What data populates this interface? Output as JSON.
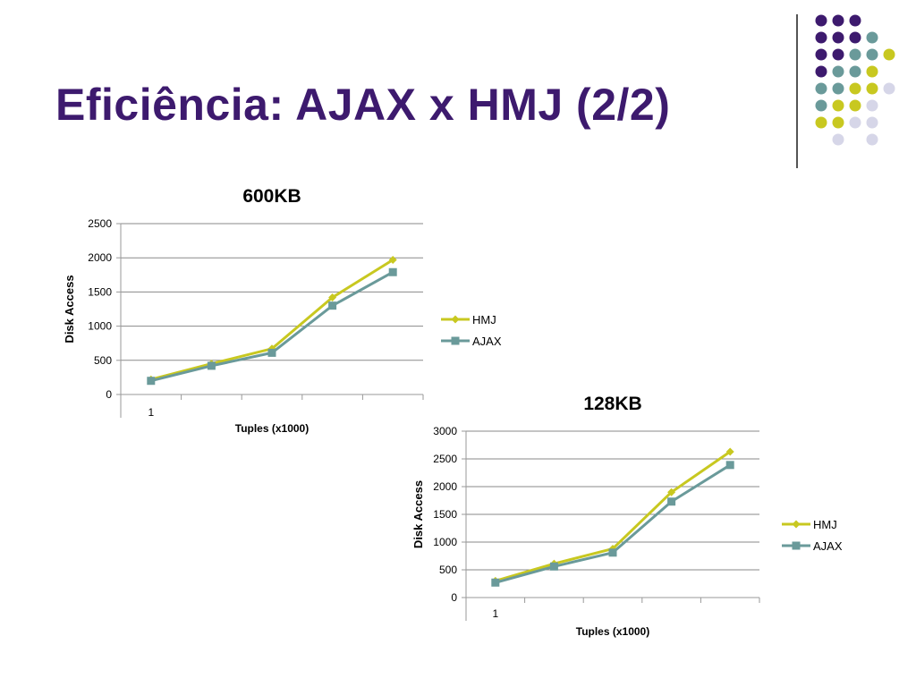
{
  "slide": {
    "title": "Eficiência: AJAX x HMJ  (2/2)"
  },
  "decor": {
    "dot_colors": {
      "purple": "#3d1a6e",
      "teal": "#6a9a9a",
      "yellow": "#c8c820",
      "lavender": "#d6d6e8"
    },
    "dot_grid": [
      [
        "purple",
        "purple",
        "purple",
        null,
        null
      ],
      [
        "purple",
        "purple",
        "purple",
        "teal",
        null
      ],
      [
        "purple",
        "purple",
        "teal",
        "teal",
        "yellow"
      ],
      [
        "purple",
        "teal",
        "teal",
        "yellow",
        null
      ],
      [
        "teal",
        "teal",
        "yellow",
        "yellow",
        "lavender"
      ],
      [
        "teal",
        "yellow",
        "yellow",
        "lavender",
        null
      ],
      [
        "yellow",
        "yellow",
        "lavender",
        "lavender",
        null
      ],
      [
        null,
        "lavender",
        null,
        "lavender",
        null
      ]
    ]
  },
  "chart_data": [
    {
      "type": "line",
      "title": "600KB",
      "xlabel": "Tuples (x1000)",
      "ylabel": "Disk Access",
      "categories": [
        "1",
        "",
        "",
        "",
        ""
      ],
      "ylim": [
        0,
        2500
      ],
      "yticks": [
        0,
        500,
        1000,
        1500,
        2000,
        2500
      ],
      "grid": true,
      "legend": "right",
      "series": [
        {
          "name": "HMJ",
          "color": "#c8c820",
          "marker": "diamond",
          "values": [
            220,
            450,
            670,
            1420,
            1970
          ]
        },
        {
          "name": "AJAX",
          "color": "#6a9a9a",
          "marker": "square",
          "values": [
            200,
            420,
            610,
            1300,
            1790
          ]
        }
      ]
    },
    {
      "type": "line",
      "title": "128KB",
      "xlabel": "Tuples (x1000)",
      "ylabel": "Disk Access",
      "categories": [
        "1",
        "",
        "",
        "",
        ""
      ],
      "ylim": [
        0,
        3000
      ],
      "yticks": [
        0,
        500,
        1000,
        1500,
        2000,
        2500,
        3000
      ],
      "grid": true,
      "legend": "right",
      "series": [
        {
          "name": "HMJ",
          "color": "#c8c820",
          "marker": "diamond",
          "values": [
            300,
            610,
            880,
            1900,
            2630
          ]
        },
        {
          "name": "AJAX",
          "color": "#6a9a9a",
          "marker": "square",
          "values": [
            270,
            560,
            810,
            1730,
            2390
          ]
        }
      ]
    }
  ]
}
